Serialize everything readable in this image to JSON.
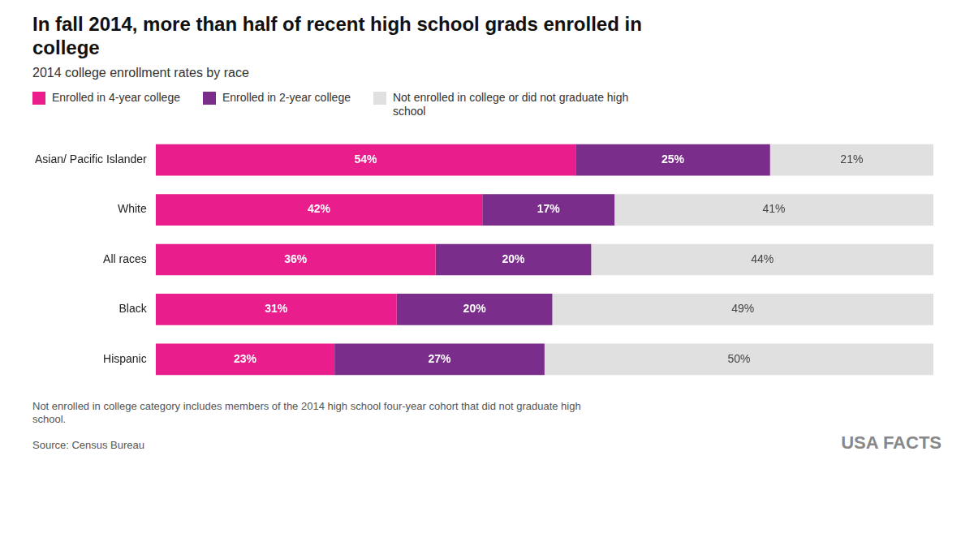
{
  "chart_data": {
    "type": "bar",
    "orientation": "horizontal",
    "stacked": true,
    "title": "In fall 2014, more than half of recent high school grads enrolled in\ncollege",
    "subtitle": "2014 college enrollment rates by race",
    "categories": [
      "Asian/ Pacific Islander",
      "White",
      "All races",
      "Black",
      "Hispanic"
    ],
    "series": [
      {
        "name": "Enrolled in 4-year college",
        "color": "#E91E8C",
        "values": [
          54,
          42,
          36,
          31,
          23
        ],
        "value_labels": [
          "54%",
          "42%",
          "36%",
          "31%",
          "23%"
        ]
      },
      {
        "name": "Enrolled in 2-year college",
        "color": "#7B2D8B",
        "values": [
          25,
          17,
          20,
          20,
          27
        ],
        "value_labels": [
          "25%",
          "17%",
          "20%",
          "20%",
          "27%"
        ]
      },
      {
        "name": "Not enrolled in college or did not graduate high\nschool",
        "color": "#E0E0E0",
        "values": [
          21,
          41,
          44,
          49,
          50
        ],
        "value_labels": [
          "21%",
          "41%",
          "44%",
          "49%",
          "50%"
        ]
      }
    ],
    "xlim": [
      0,
      100
    ],
    "grid": false,
    "legend": "top",
    "data_labels": true,
    "tick_labels": "y",
    "annotations": [
      "Not enrolled in college category includes members of the 2014 high school four-year cohort that did not graduate high\nschool.",
      "Source: Census Bureau",
      "USA FACTS"
    ]
  }
}
